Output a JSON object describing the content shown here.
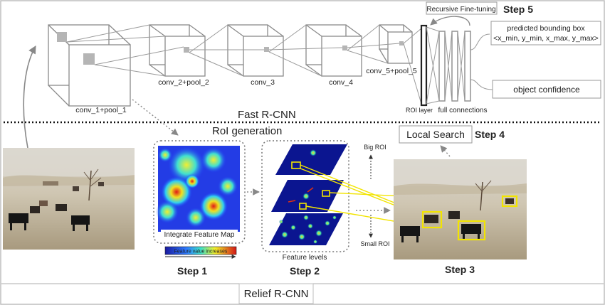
{
  "fast_rcnn": {
    "title": "Fast R-CNN",
    "layers": {
      "conv1": "conv_1+pool_1",
      "conv2": "conv_2+pool_2",
      "conv3": "conv_3",
      "conv4": "conv_4",
      "conv5": "conv_5+pool_5",
      "roi_layer": "ROI layer",
      "full_connections": "full connections"
    },
    "outputs": {
      "bbox_line1": "predicted bounding box",
      "bbox_line2": "<x_min, y_min, x_max, y_max>",
      "confidence": "object confidence"
    },
    "recursive": "Recursive Fine-tuning"
  },
  "roi_generation": {
    "title": "RoI generation",
    "feature_map_label": "Integrate Feature Map",
    "colorbar_label": "Feature value increases",
    "feature_levels_label": "Feature levels",
    "big_roi": "Big ROI",
    "small_roi": "Small ROI",
    "local_search": "Local Search"
  },
  "steps": {
    "step1": "Step 1",
    "step2": "Step 2",
    "step3": "Step 3",
    "step4": "Step 4",
    "step5": "Step 5"
  },
  "footer": {
    "title": "Relief R-CNN"
  },
  "colors": {
    "line": "#8a8a8a",
    "highlight": "#f2e400",
    "dotted": "#111111",
    "photo_sky": "#e9e6e0",
    "photo_ground": "#b8ab93"
  }
}
